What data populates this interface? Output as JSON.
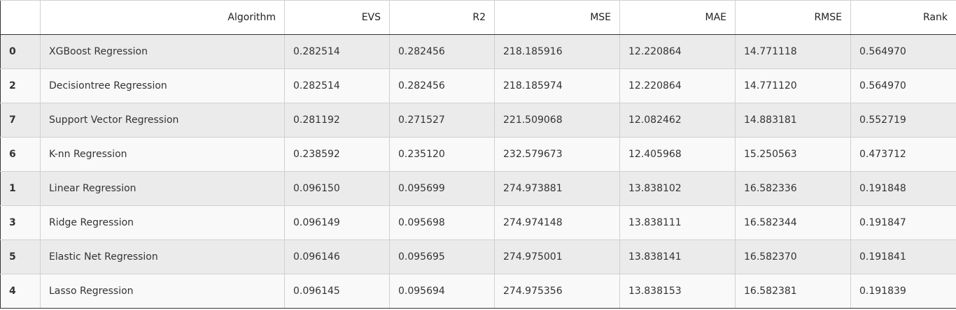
{
  "table": {
    "columns": {
      "index": "",
      "algorithm": "Algorithm",
      "evs": "EVS",
      "r2": "R2",
      "mse": "MSE",
      "mae": "MAE",
      "rmse": "RMSE",
      "rank": "Rank"
    },
    "rows": [
      {
        "index": "0",
        "algorithm": "XGBoost Regression",
        "evs": "0.282514",
        "r2": "0.282456",
        "mse": "218.185916",
        "mae": "12.220864",
        "rmse": "14.771118",
        "rank": "0.564970"
      },
      {
        "index": "2",
        "algorithm": "Decisiontree Regression",
        "evs": "0.282514",
        "r2": "0.282456",
        "mse": "218.185974",
        "mae": "12.220864",
        "rmse": "14.771120",
        "rank": "0.564970"
      },
      {
        "index": "7",
        "algorithm": "Support Vector Regression",
        "evs": "0.281192",
        "r2": "0.271527",
        "mse": "221.509068",
        "mae": "12.082462",
        "rmse": "14.883181",
        "rank": "0.552719"
      },
      {
        "index": "6",
        "algorithm": "K-nn Regression",
        "evs": "0.238592",
        "r2": "0.235120",
        "mse": "232.579673",
        "mae": "12.405968",
        "rmse": "15.250563",
        "rank": "0.473712"
      },
      {
        "index": "1",
        "algorithm": "Linear Regression",
        "evs": "0.096150",
        "r2": "0.095699",
        "mse": "274.973881",
        "mae": "13.838102",
        "rmse": "16.582336",
        "rank": "0.191848"
      },
      {
        "index": "3",
        "algorithm": "Ridge Regression",
        "evs": "0.096149",
        "r2": "0.095698",
        "mse": "274.974148",
        "mae": "13.838111",
        "rmse": "16.582344",
        "rank": "0.191847"
      },
      {
        "index": "5",
        "algorithm": "Elastic Net Regression",
        "evs": "0.096146",
        "r2": "0.095695",
        "mse": "274.975001",
        "mae": "13.838141",
        "rmse": "16.582370",
        "rank": "0.191841"
      },
      {
        "index": "4",
        "algorithm": "Lasso Regression",
        "evs": "0.096145",
        "r2": "0.095694",
        "mse": "274.975356",
        "mae": "13.838153",
        "rmse": "16.582381",
        "rank": "0.191839"
      }
    ]
  }
}
